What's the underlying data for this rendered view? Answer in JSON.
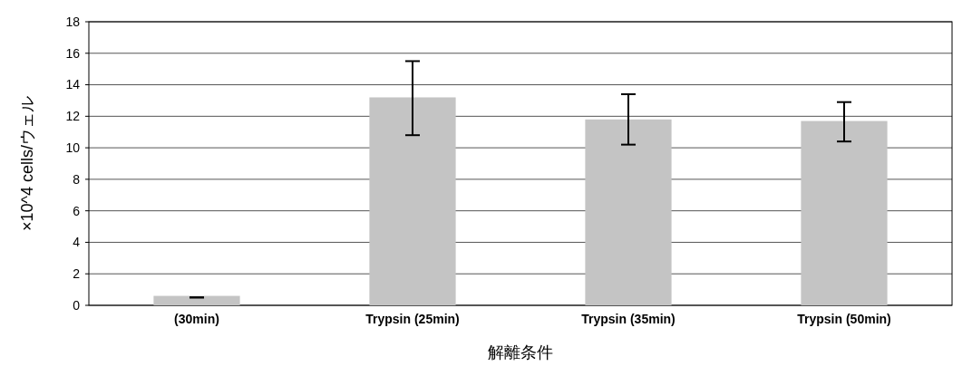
{
  "chart_data": {
    "type": "bar",
    "xlabel": "解離条件",
    "ylabel": "×10^4 cells/ウェル",
    "categories": [
      "(30min)",
      "Trypsin (25min)",
      "Trypsin (35min)",
      "Trypsin (50min)"
    ],
    "values": [
      0.6,
      13.2,
      11.8,
      11.7
    ],
    "errors": [
      [
        0.5,
        0.5
      ],
      [
        10.8,
        15.5
      ],
      [
        10.2,
        13.4
      ],
      [
        10.4,
        12.9
      ]
    ],
    "color": "#c4c4c4",
    "ylim": [
      0,
      18
    ],
    "yticks": [
      0,
      2,
      4,
      6,
      8,
      10,
      12,
      14,
      16,
      18
    ],
    "grid": "y"
  }
}
